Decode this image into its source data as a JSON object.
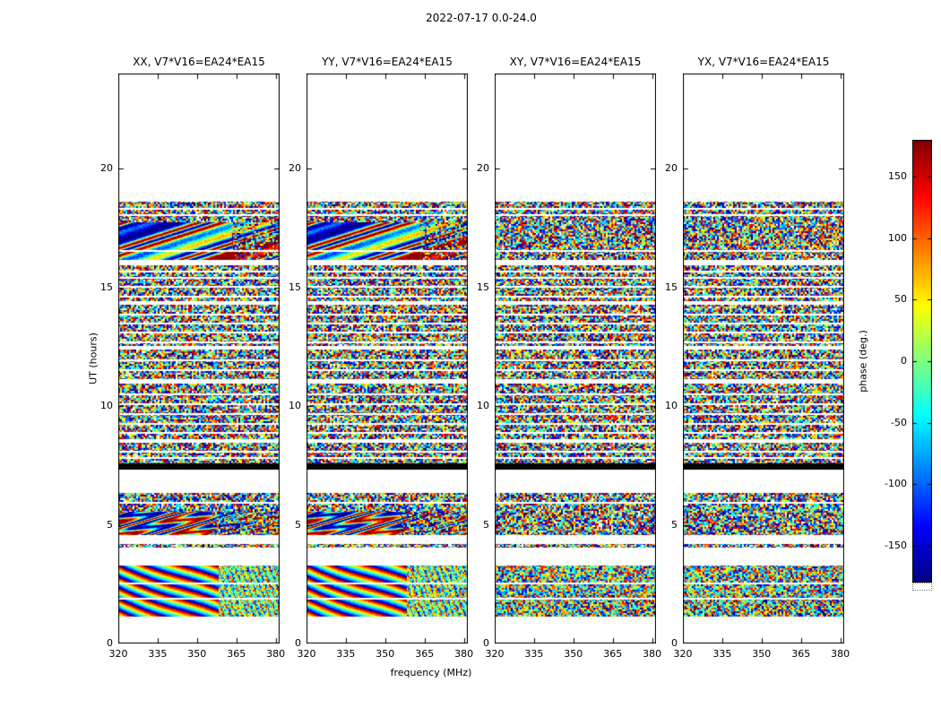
{
  "chart_data": {
    "type": "heatmap",
    "title": "2022-07-17 0.0-24.0",
    "xlabel": "frequency (MHz)",
    "ylabel": "UT (hours)",
    "xlim": [
      320,
      381.5
    ],
    "ylim": [
      0,
      24
    ],
    "x_ticks": [
      320,
      335,
      350,
      365,
      380
    ],
    "y_ticks": [
      0,
      5,
      10,
      15,
      20
    ],
    "colorbar": {
      "label": "phase (deg.)",
      "ticks": [
        150,
        100,
        50,
        0,
        -50,
        -100,
        -150
      ],
      "min": -180,
      "max": 180,
      "colormap": "jet"
    },
    "panels": [
      {
        "title": "XX, V7*V16=EA24*EA15",
        "pol": "XX",
        "hands": "parallel"
      },
      {
        "title": "YY, V7*V16=EA24*EA15",
        "pol": "YY",
        "hands": "parallel"
      },
      {
        "title": "XY, V7*V16=EA24*EA15",
        "pol": "XY",
        "hands": "cross"
      },
      {
        "title": "YX, V7*V16=EA24*EA15",
        "pol": "YX",
        "hands": "cross"
      }
    ],
    "time_segments": [
      {
        "t0": 24.0,
        "t1": 18.62,
        "kind": "white"
      },
      {
        "t0": 18.62,
        "t1": 17.75,
        "kind": "noise",
        "lines": [
          18.35,
          18.08
        ]
      },
      {
        "t0": 17.75,
        "t1": 16.15,
        "kind": "wavy",
        "lines": [
          16.55
        ]
      },
      {
        "t0": 16.15,
        "t1": 15.92,
        "kind": "white"
      },
      {
        "t0": 15.92,
        "t1": 14.42,
        "kind": "noise",
        "lines": [
          15.68,
          15.42,
          15.05,
          14.66
        ]
      },
      {
        "t0": 14.42,
        "t1": 14.27,
        "kind": "white"
      },
      {
        "t0": 14.27,
        "t1": 12.52,
        "kind": "noise",
        "lines": [
          13.88,
          13.5,
          13.12,
          12.72
        ]
      },
      {
        "t0": 12.52,
        "t1": 12.36,
        "kind": "white"
      },
      {
        "t0": 12.36,
        "t1": 11.12,
        "kind": "noise",
        "lines": [
          11.98,
          11.56
        ]
      },
      {
        "t0": 11.12,
        "t1": 10.96,
        "kind": "white"
      },
      {
        "t0": 10.96,
        "t1": 8.62,
        "kind": "noise",
        "lines": [
          10.52,
          10.12,
          9.7,
          9.3,
          8.9
        ]
      },
      {
        "t0": 8.62,
        "t1": 8.46,
        "kind": "white"
      },
      {
        "t0": 8.46,
        "t1": 7.58,
        "kind": "noise",
        "lines": [
          8.12,
          7.86
        ]
      },
      {
        "t0": 7.58,
        "t1": 7.32,
        "kind": "black"
      },
      {
        "t0": 7.32,
        "t1": 6.35,
        "kind": "white"
      },
      {
        "t0": 6.35,
        "t1": 5.55,
        "kind": "noise",
        "lines": [
          5.95
        ]
      },
      {
        "t0": 5.55,
        "t1": 4.55,
        "kind": "wavy2"
      },
      {
        "t0": 4.55,
        "t1": 4.2,
        "kind": "white"
      },
      {
        "t0": 4.2,
        "t1": 4.05,
        "kind": "noise"
      },
      {
        "t0": 4.05,
        "t1": 3.3,
        "kind": "white"
      },
      {
        "t0": 3.3,
        "t1": 1.15,
        "kind": "stripes",
        "lines": [
          2.55,
          1.92
        ]
      },
      {
        "t0": 1.15,
        "t1": 0.0,
        "kind": "white"
      }
    ]
  }
}
